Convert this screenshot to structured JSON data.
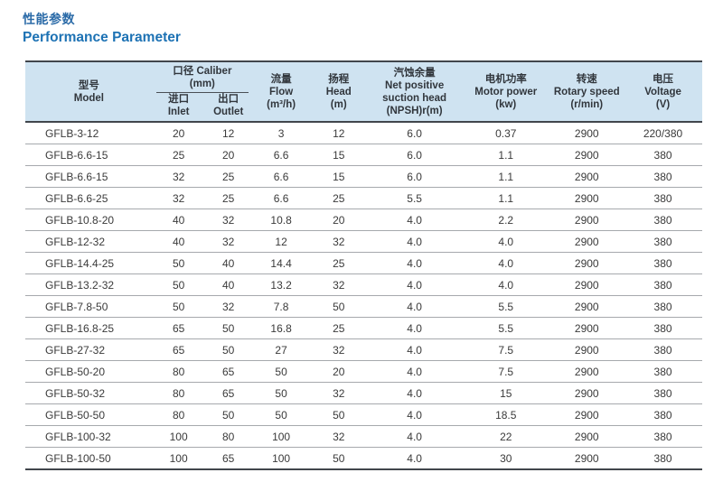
{
  "page": {
    "title_zh": "性能参数",
    "title_en": "Performance Parameter",
    "accent_color": "#1d72b4",
    "header_bg_color": "#cfe3f1"
  },
  "table": {
    "columns": {
      "model": {
        "zh": "型号",
        "en": "Model"
      },
      "caliber_group": {
        "label": "口径 Caliber",
        "unit": "(mm)"
      },
      "inlet": {
        "zh": "进口",
        "en": "Inlet"
      },
      "outlet": {
        "zh": "出口",
        "en": "Outlet"
      },
      "flow": {
        "zh": "流量",
        "en": "Flow",
        "unit": "(m³/h)"
      },
      "head": {
        "zh": "扬程",
        "en": "Head",
        "unit": "(m)"
      },
      "npsh": {
        "zh": "汽蚀余量",
        "en_line1": "Net positive",
        "en_line2": "suction head",
        "unit": "(NPSH)r(m)"
      },
      "motor_power": {
        "zh": "电机功率",
        "en": "Motor power",
        "unit": "(kw)"
      },
      "rotary_speed": {
        "zh": "转速",
        "en": "Rotary speed",
        "unit": "(r/min)"
      },
      "voltage": {
        "zh": "电压",
        "en": "Voltage",
        "unit": "(V)"
      }
    },
    "rows": [
      [
        "GFLB-3-12",
        "20",
        "12",
        "3",
        "12",
        "6.0",
        "0.37",
        "2900",
        "220/380"
      ],
      [
        "GFLB-6.6-15",
        "25",
        "20",
        "6.6",
        "15",
        "6.0",
        "1.1",
        "2900",
        "380"
      ],
      [
        "GFLB-6.6-15",
        "32",
        "25",
        "6.6",
        "15",
        "6.0",
        "1.1",
        "2900",
        "380"
      ],
      [
        "GFLB-6.6-25",
        "32",
        "25",
        "6.6",
        "25",
        "5.5",
        "1.1",
        "2900",
        "380"
      ],
      [
        "GFLB-10.8-20",
        "40",
        "32",
        "10.8",
        "20",
        "4.0",
        "2.2",
        "2900",
        "380"
      ],
      [
        "GFLB-12-32",
        "40",
        "32",
        "12",
        "32",
        "4.0",
        "4.0",
        "2900",
        "380"
      ],
      [
        "GFLB-14.4-25",
        "50",
        "40",
        "14.4",
        "25",
        "4.0",
        "4.0",
        "2900",
        "380"
      ],
      [
        "GFLB-13.2-32",
        "50",
        "40",
        "13.2",
        "32",
        "4.0",
        "4.0",
        "2900",
        "380"
      ],
      [
        "GFLB-7.8-50",
        "50",
        "32",
        "7.8",
        "50",
        "4.0",
        "5.5",
        "2900",
        "380"
      ],
      [
        "GFLB-16.8-25",
        "65",
        "50",
        "16.8",
        "25",
        "4.0",
        "5.5",
        "2900",
        "380"
      ],
      [
        "GFLB-27-32",
        "65",
        "50",
        "27",
        "32",
        "4.0",
        "7.5",
        "2900",
        "380"
      ],
      [
        "GFLB-50-20",
        "80",
        "65",
        "50",
        "20",
        "4.0",
        "7.5",
        "2900",
        "380"
      ],
      [
        "GFLB-50-32",
        "80",
        "65",
        "50",
        "32",
        "4.0",
        "15",
        "2900",
        "380"
      ],
      [
        "GFLB-50-50",
        "80",
        "50",
        "50",
        "50",
        "4.0",
        "18.5",
        "2900",
        "380"
      ],
      [
        "GFLB-100-32",
        "100",
        "80",
        "100",
        "32",
        "4.0",
        "22",
        "2900",
        "380"
      ],
      [
        "GFLB-100-50",
        "100",
        "65",
        "100",
        "50",
        "4.0",
        "30",
        "2900",
        "380"
      ]
    ]
  }
}
